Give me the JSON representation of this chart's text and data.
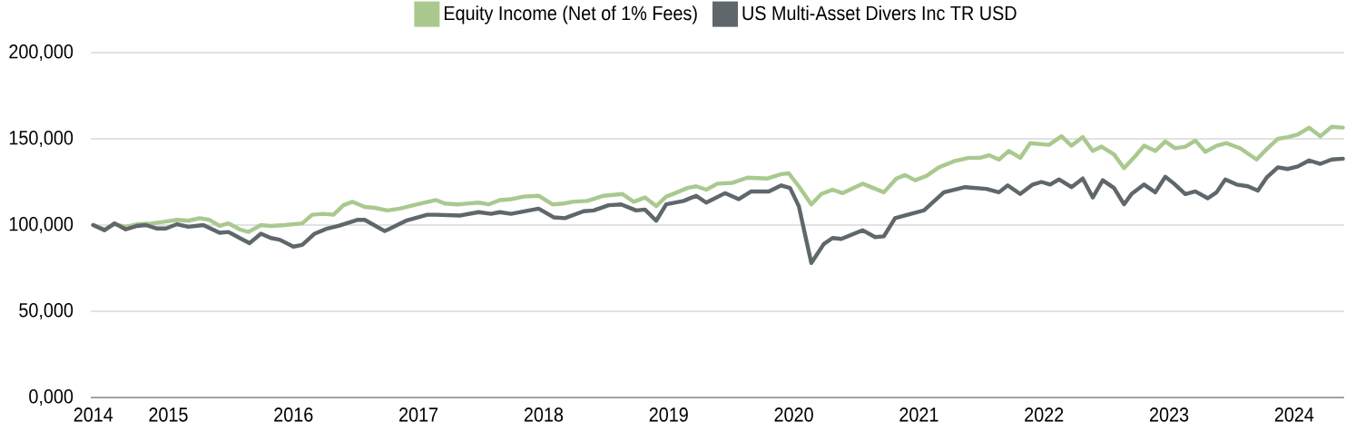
{
  "chart_data": {
    "type": "line",
    "legend": "top",
    "grid": "y",
    "xlim": [
      2014.38,
      2024.4
    ],
    "xticks": [
      {
        "value": 2014.4,
        "label": "2014"
      },
      2015,
      2016,
      2017,
      2018,
      2019,
      2020,
      2021,
      2022,
      2023,
      2024
    ],
    "ylim": [
      0,
      200000
    ],
    "yticks": [
      {
        "value": 0,
        "label": "0,000"
      },
      {
        "value": 50000,
        "label": "50,000"
      },
      {
        "value": 100000,
        "label": "100,000"
      },
      {
        "value": 150000,
        "label": "150,000"
      },
      {
        "value": 200000,
        "label": "200,000"
      }
    ],
    "series": [
      {
        "name": "Equity Income (Net of 1% Fees)",
        "color": "#a9c98f",
        "x": [
          2014.4,
          2014.49,
          2014.57,
          2014.66,
          2014.75,
          2014.87,
          2014.98,
          2015.07,
          2015.16,
          2015.25,
          2015.33,
          2015.41,
          2015.48,
          2015.57,
          2015.64,
          2015.74,
          2015.82,
          2015.93,
          2016.07,
          2016.15,
          2016.24,
          2016.32,
          2016.4,
          2016.47,
          2016.57,
          2016.65,
          2016.75,
          2016.85,
          2016.99,
          2017.14,
          2017.21,
          2017.31,
          2017.48,
          2017.56,
          2017.65,
          2017.74,
          2017.84,
          2017.96,
          2018.07,
          2018.16,
          2018.23,
          2018.35,
          2018.48,
          2018.63,
          2018.72,
          2018.81,
          2018.9,
          2018.98,
          2019.05,
          2019.15,
          2019.22,
          2019.3,
          2019.39,
          2019.51,
          2019.63,
          2019.79,
          2019.9,
          2019.96,
          2020.04,
          2020.14,
          2020.22,
          2020.31,
          2020.39,
          2020.55,
          2020.72,
          2020.82,
          2020.89,
          2020.97,
          2021.06,
          2021.16,
          2021.28,
          2021.4,
          2021.49,
          2021.56,
          2021.64,
          2021.72,
          2021.81,
          2021.89,
          2022.04,
          2022.14,
          2022.22,
          2022.31,
          2022.39,
          2022.46,
          2022.56,
          2022.64,
          2022.73,
          2022.8,
          2022.89,
          2022.97,
          2023.05,
          2023.13,
          2023.21,
          2023.29,
          2023.38,
          2023.46,
          2023.57,
          2023.7,
          2023.78,
          2023.87,
          2023.95,
          2024.03,
          2024.12,
          2024.21,
          2024.3,
          2024.39
        ],
        "values": [
          100000,
          97500,
          100500,
          99000,
          100500,
          101000,
          102000,
          103000,
          102500,
          104000,
          103000,
          99500,
          101000,
          97500,
          96000,
          100000,
          99500,
          100000,
          101000,
          106000,
          106500,
          106000,
          111500,
          113500,
          110500,
          110000,
          108500,
          109500,
          112000,
          114500,
          112500,
          112000,
          113000,
          112000,
          114500,
          115000,
          116500,
          117000,
          112000,
          112500,
          113500,
          114000,
          117000,
          118000,
          113500,
          116000,
          111000,
          116500,
          118500,
          121500,
          122500,
          120500,
          124000,
          124500,
          127500,
          127000,
          129500,
          130000,
          122500,
          112000,
          118000,
          120500,
          118500,
          124000,
          119000,
          127000,
          129000,
          126000,
          128500,
          133500,
          137000,
          139000,
          139000,
          140500,
          138000,
          143000,
          139000,
          147500,
          146500,
          151500,
          146000,
          151000,
          143000,
          145500,
          141000,
          133000,
          140000,
          146000,
          143000,
          148500,
          144500,
          145500,
          149000,
          142500,
          146000,
          147500,
          144500,
          138000,
          144000,
          150000,
          151000,
          152500,
          156500,
          151500,
          157000,
          156500
        ]
      },
      {
        "name": "US Multi-Asset Divers Inc TR USD",
        "color": "#5f676b",
        "x": [
          2014.4,
          2014.49,
          2014.57,
          2014.66,
          2014.75,
          2014.82,
          2014.91,
          2014.98,
          2015.07,
          2015.16,
          2015.28,
          2015.41,
          2015.48,
          2015.57,
          2015.65,
          2015.74,
          2015.82,
          2015.89,
          2016.0,
          2016.07,
          2016.17,
          2016.27,
          2016.36,
          2016.51,
          2016.57,
          2016.73,
          2016.9,
          2017.07,
          2017.14,
          2017.33,
          2017.48,
          2017.58,
          2017.65,
          2017.74,
          2017.96,
          2018.08,
          2018.17,
          2018.32,
          2018.4,
          2018.52,
          2018.62,
          2018.74,
          2018.81,
          2018.9,
          2018.98,
          2019.12,
          2019.22,
          2019.3,
          2019.45,
          2019.56,
          2019.66,
          2019.8,
          2019.9,
          2019.97,
          2020.04,
          2020.14,
          2020.24,
          2020.31,
          2020.38,
          2020.55,
          2020.65,
          2020.72,
          2020.81,
          2020.91,
          2021.04,
          2021.2,
          2021.37,
          2021.54,
          2021.64,
          2021.71,
          2021.81,
          2021.91,
          2021.98,
          2022.05,
          2022.12,
          2022.22,
          2022.31,
          2022.39,
          2022.47,
          2022.56,
          2022.64,
          2022.7,
          2022.8,
          2022.89,
          2022.97,
          2023.04,
          2023.13,
          2023.21,
          2023.31,
          2023.38,
          2023.45,
          2023.54,
          2023.63,
          2023.71,
          2023.78,
          2023.87,
          2023.95,
          2024.03,
          2024.12,
          2024.21,
          2024.3,
          2024.39
        ],
        "values": [
          100000,
          97000,
          101000,
          97500,
          99500,
          100000,
          98000,
          98000,
          100500,
          99000,
          100000,
          95500,
          96000,
          92500,
          89500,
          95000,
          92500,
          91500,
          87500,
          88500,
          95000,
          98000,
          99500,
          103000,
          103000,
          96500,
          102500,
          106000,
          106000,
          105500,
          107500,
          106500,
          107500,
          106500,
          109500,
          104500,
          104000,
          108000,
          108500,
          111500,
          112000,
          108500,
          109000,
          102500,
          112000,
          114000,
          117000,
          113000,
          118500,
          115000,
          119500,
          119500,
          123000,
          121500,
          111000,
          78000,
          89000,
          92500,
          92000,
          97000,
          93000,
          93500,
          104000,
          106000,
          108500,
          119000,
          122000,
          121000,
          119000,
          123000,
          118000,
          123500,
          125000,
          123500,
          126500,
          122000,
          127000,
          116000,
          126000,
          121500,
          112000,
          118000,
          123500,
          119000,
          128000,
          124000,
          118000,
          119500,
          115500,
          119000,
          126500,
          123500,
          122500,
          120000,
          127500,
          133500,
          132500,
          134000,
          137500,
          135500,
          138000,
          138500
        ]
      }
    ]
  }
}
